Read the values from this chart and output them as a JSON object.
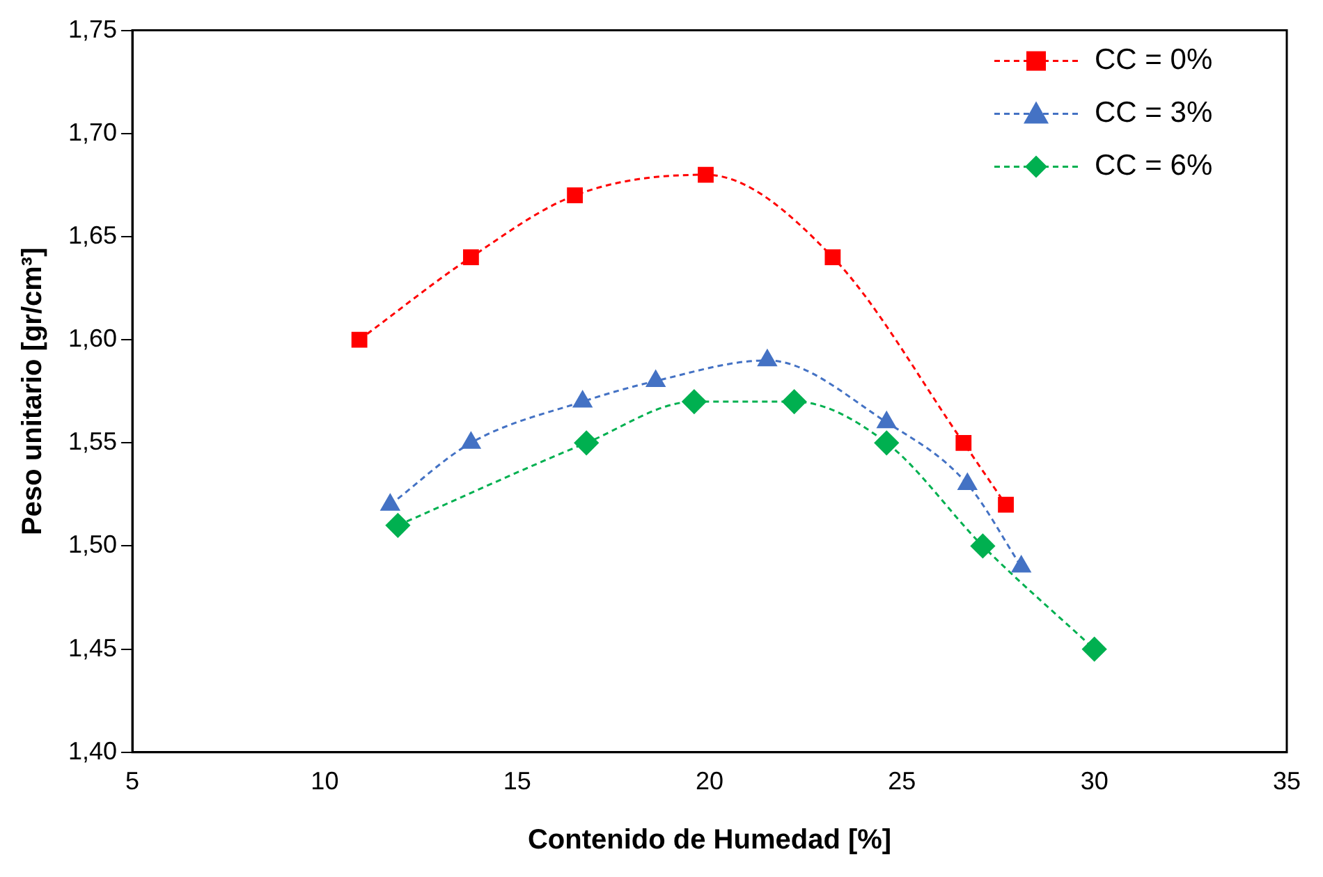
{
  "chart_data": {
    "type": "line",
    "xlabel": "Contenido de Humedad [%]",
    "ylabel": "Peso unitario [gr/cm³]",
    "xlim": [
      5,
      35
    ],
    "xticks": [
      5,
      10,
      15,
      20,
      25,
      30,
      35
    ],
    "ylim": [
      1.4,
      1.75
    ],
    "yticks": [
      {
        "value": 1.4,
        "label": "1,40"
      },
      {
        "value": 1.45,
        "label": "1,45"
      },
      {
        "value": 1.5,
        "label": "1,50"
      },
      {
        "value": 1.55,
        "label": "1,55"
      },
      {
        "value": 1.6,
        "label": "1,60"
      },
      {
        "value": 1.65,
        "label": "1,65"
      },
      {
        "value": 1.7,
        "label": "1,70"
      },
      {
        "value": 1.75,
        "label": "1,75"
      }
    ],
    "grid": false,
    "legend": "top right",
    "line_style": "dashed",
    "series": [
      {
        "name": "CC = 0%",
        "color": "#ff0000",
        "marker": "square",
        "x": [
          10.9,
          13.8,
          16.5,
          19.9,
          23.2,
          26.6,
          27.7
        ],
        "values": [
          1.6,
          1.64,
          1.67,
          1.68,
          1.64,
          1.55,
          1.52
        ]
      },
      {
        "name": "CC = 3%",
        "color": "#4472c4",
        "marker": "triangle",
        "x": [
          11.7,
          13.8,
          16.7,
          18.6,
          21.5,
          24.6,
          26.7,
          28.1
        ],
        "values": [
          1.52,
          1.55,
          1.57,
          1.58,
          1.59,
          1.56,
          1.53,
          1.49
        ]
      },
      {
        "name": "CC = 6%",
        "color": "#00b050",
        "marker": "diamond",
        "x": [
          11.9,
          16.8,
          19.6,
          22.2,
          24.6,
          27.1,
          30.0
        ],
        "values": [
          1.51,
          1.55,
          1.57,
          1.57,
          1.55,
          1.5,
          1.45
        ]
      }
    ]
  }
}
